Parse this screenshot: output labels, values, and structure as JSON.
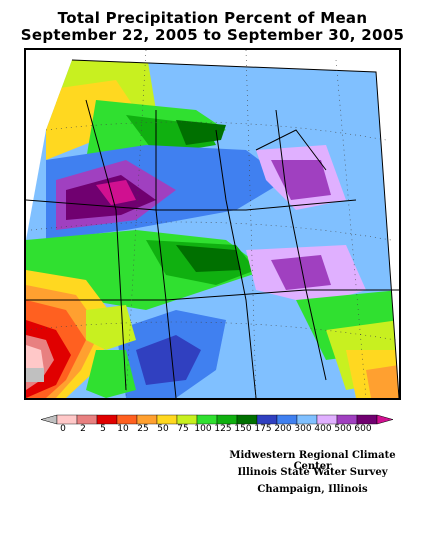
{
  "title": {
    "line1": "Total Precipitation Percent of Mean",
    "line2": "September 22, 2005 to September 30, 2005"
  },
  "legend": {
    "bins": [
      {
        "label": "0",
        "color": "#ffc8c8"
      },
      {
        "label": "2",
        "color": "#e88080"
      },
      {
        "label": "5",
        "color": "#e00000"
      },
      {
        "label": "10",
        "color": "#ff6020"
      },
      {
        "label": "25",
        "color": "#ffa030"
      },
      {
        "label": "50",
        "color": "#ffd820"
      },
      {
        "label": "75",
        "color": "#c8f020"
      },
      {
        "label": "100",
        "color": "#30e030"
      },
      {
        "label": "125",
        "color": "#10b010"
      },
      {
        "label": "150",
        "color": "#007000"
      },
      {
        "label": "175",
        "color": "#3040c0"
      },
      {
        "label": "200",
        "color": "#4080f0"
      },
      {
        "label": "300",
        "color": "#80c0ff"
      },
      {
        "label": "400",
        "color": "#e0b0ff"
      },
      {
        "label": "500",
        "color": "#a040c0"
      },
      {
        "label": "600",
        "color": "#700070"
      }
    ],
    "under_color": "#c0c0c0",
    "over_color": "#d01090"
  },
  "credits": {
    "line1": "Midwestern Regional Climate Center",
    "line2": "Illinois State Water Survey",
    "line3": "Champaign, Illinois"
  }
}
